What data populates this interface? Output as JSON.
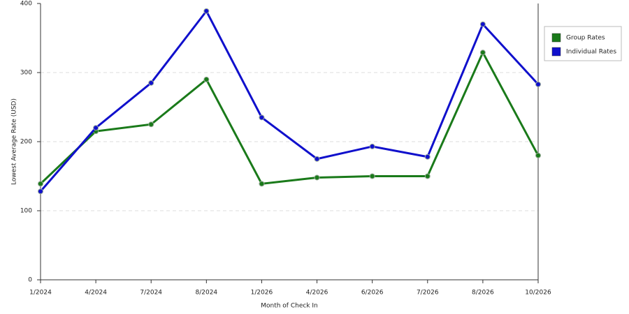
{
  "chart_data": {
    "type": "line",
    "x_label": "Month of Check In",
    "y_label": "Lowest Average Rate (USD)",
    "categories": [
      "1/2024",
      "4/2024",
      "7/2024",
      "8/2024",
      "1/2026",
      "4/2026",
      "6/2026",
      "7/2026",
      "8/2026",
      "10/2026"
    ],
    "series": [
      {
        "name": "Group Rates",
        "color": "#1a7a1a",
        "values": [
          139,
          215,
          225,
          290,
          139,
          148,
          150,
          150,
          329,
          180
        ]
      },
      {
        "name": "Individual Rates",
        "color": "#1010cc",
        "values": [
          128,
          220,
          285,
          389,
          235,
          175,
          193,
          178,
          370,
          283
        ]
      }
    ],
    "ylim": [
      0,
      400
    ],
    "yticks": [
      0,
      100,
      200,
      300,
      400
    ],
    "grid": true,
    "legend": "right"
  }
}
